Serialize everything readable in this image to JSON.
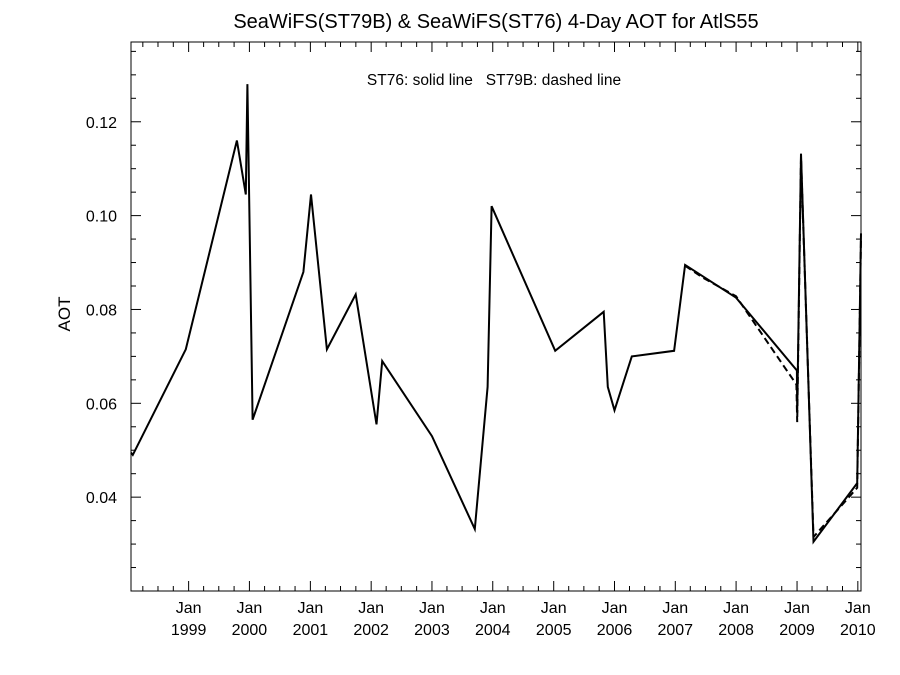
{
  "chart_data": {
    "type": "line",
    "title": "SeaWiFS(ST79B) & SeaWiFS(ST76) 4-Day AOT for AtlS55",
    "annotation": "ST76: solid line   ST79B: dashed line",
    "ylabel": "AOT",
    "xlabel": "",
    "xlim": [
      "1998-01-20",
      "2010-01-20"
    ],
    "ylim": [
      0.02,
      0.137
    ],
    "yticks": [
      0.04,
      0.06,
      0.08,
      0.1,
      0.12
    ],
    "ytick_labels": [
      "0.04",
      "0.06",
      "0.08",
      "0.10",
      "0.12"
    ],
    "xticks": [
      {
        "date": "1999-01-01",
        "label_top": "Jan",
        "label_bottom": "1999"
      },
      {
        "date": "2000-01-01",
        "label_top": "Jan",
        "label_bottom": "2000"
      },
      {
        "date": "2001-01-01",
        "label_top": "Jan",
        "label_bottom": "2001"
      },
      {
        "date": "2002-01-01",
        "label_top": "Jan",
        "label_bottom": "2002"
      },
      {
        "date": "2003-01-01",
        "label_top": "Jan",
        "label_bottom": "2003"
      },
      {
        "date": "2004-01-01",
        "label_top": "Jan",
        "label_bottom": "2004"
      },
      {
        "date": "2005-01-01",
        "label_top": "Jan",
        "label_bottom": "2005"
      },
      {
        "date": "2006-01-01",
        "label_top": "Jan",
        "label_bottom": "2006"
      },
      {
        "date": "2007-01-01",
        "label_top": "Jan",
        "label_bottom": "2007"
      },
      {
        "date": "2008-01-01",
        "label_top": "Jan",
        "label_bottom": "2008"
      },
      {
        "date": "2009-01-01",
        "label_top": "Jan",
        "label_bottom": "2009"
      },
      {
        "date": "2010-01-01",
        "label_top": "Jan",
        "label_bottom": "2010"
      }
    ],
    "grid": false,
    "series": [
      {
        "name": "ST76",
        "style": "solid",
        "color": "#000000",
        "points": [
          {
            "x": "1998-01-20",
            "y": 0.0495
          },
          {
            "x": "1998-01-31",
            "y": 0.049
          },
          {
            "x": "1998-12-15",
            "y": 0.0715
          },
          {
            "x": "1999-10-18",
            "y": 0.116
          },
          {
            "x": "1999-12-10",
            "y": 0.1045
          },
          {
            "x": "1999-12-20",
            "y": 0.128
          },
          {
            "x": "2000-01-20",
            "y": 0.0565
          },
          {
            "x": "2000-11-20",
            "y": 0.088
          },
          {
            "x": "2001-01-05",
            "y": 0.1045
          },
          {
            "x": "2001-04-10",
            "y": 0.0715
          },
          {
            "x": "2001-09-30",
            "y": 0.0832
          },
          {
            "x": "2002-02-02",
            "y": 0.0555
          },
          {
            "x": "2002-03-08",
            "y": 0.069
          },
          {
            "x": "2003-01-01",
            "y": 0.053
          },
          {
            "x": "2003-09-15",
            "y": 0.0332
          },
          {
            "x": "2003-12-01",
            "y": 0.0635
          },
          {
            "x": "2003-12-25",
            "y": 0.102
          },
          {
            "x": "2005-01-10",
            "y": 0.0712
          },
          {
            "x": "2005-10-28",
            "y": 0.0795
          },
          {
            "x": "2005-11-22",
            "y": 0.0635
          },
          {
            "x": "2006-01-01",
            "y": 0.0585
          },
          {
            "x": "2006-04-15",
            "y": 0.07
          },
          {
            "x": "2006-12-25",
            "y": 0.0712
          },
          {
            "x": "2007-03-01",
            "y": 0.0895
          },
          {
            "x": "2008-01-01",
            "y": 0.0825
          },
          {
            "x": "2008-12-31",
            "y": 0.067
          },
          {
            "x": "2009-01-02",
            "y": 0.058
          },
          {
            "x": "2009-01-25",
            "y": 0.1132
          },
          {
            "x": "2009-04-10",
            "y": 0.0305
          },
          {
            "x": "2009-12-28",
            "y": 0.043
          },
          {
            "x": "2010-01-20",
            "y": 0.0962
          }
        ]
      },
      {
        "name": "ST79B",
        "style": "dashed",
        "color": "#000000",
        "points": [
          {
            "x": "2007-03-01",
            "y": 0.0893
          },
          {
            "x": "2007-06-15",
            "y": 0.0868
          },
          {
            "x": "2008-01-01",
            "y": 0.0828
          },
          {
            "x": "2008-12-28",
            "y": 0.064
          },
          {
            "x": "2009-01-02",
            "y": 0.056
          },
          {
            "x": "2009-01-25",
            "y": 0.1125
          },
          {
            "x": "2009-04-10",
            "y": 0.0315
          },
          {
            "x": "2009-12-28",
            "y": 0.042
          },
          {
            "x": "2010-01-20",
            "y": 0.0955
          }
        ]
      }
    ]
  }
}
